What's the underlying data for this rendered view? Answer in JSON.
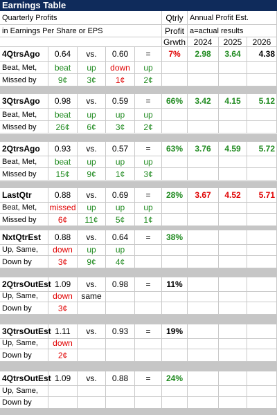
{
  "title": "Earnings Table",
  "header": {
    "line1": "Quarterly Profits",
    "line2": "in Earnings Per Share or EPS",
    "growth": [
      "Qtrly",
      "Profit",
      "Grwth"
    ],
    "annual_label": "Annual Profit Est.",
    "actual_label": "a=actual results",
    "years": [
      "2024",
      "2025",
      "2026"
    ]
  },
  "blocks": [
    {
      "rows": [
        [
          "4QtrsAgo",
          "0.64",
          "vs.",
          "0.60",
          "=",
          "7%",
          "2.98",
          "3.64",
          "4.38"
        ],
        [
          "Beat, Met,",
          "beat",
          "up",
          "down",
          "up",
          "",
          "",
          "",
          ""
        ],
        [
          "Missed by",
          "9¢",
          "3¢",
          "1¢",
          "2¢",
          "",
          "",
          "",
          ""
        ]
      ],
      "colors": [
        [
          "",
          "",
          "",
          "",
          "",
          "red",
          "green",
          "green",
          ""
        ],
        [
          "",
          "green",
          "green",
          "red",
          "green",
          "",
          "",
          "",
          ""
        ],
        [
          "",
          "green",
          "green",
          "red",
          "green",
          "",
          "",
          "",
          ""
        ]
      ]
    },
    {
      "rows": [
        [
          "3QtrsAgo",
          "0.98",
          "vs.",
          "0.59",
          "=",
          "66%",
          "3.42",
          "4.15",
          "5.12"
        ],
        [
          "Beat, Met,",
          "beat",
          "up",
          "up",
          "up",
          "",
          "",
          "",
          ""
        ],
        [
          "Missed by",
          "26¢",
          "6¢",
          "3¢",
          "2¢",
          "",
          "",
          "",
          ""
        ]
      ],
      "colors": [
        [
          "",
          "",
          "",
          "",
          "",
          "green",
          "green",
          "green",
          "green"
        ],
        [
          "",
          "green",
          "green",
          "green",
          "green",
          "",
          "",
          "",
          ""
        ],
        [
          "",
          "green",
          "green",
          "green",
          "green",
          "",
          "",
          "",
          ""
        ]
      ]
    },
    {
      "rows": [
        [
          "2QtrsAgo",
          "0.93",
          "vs.",
          "0.57",
          "=",
          "63%",
          "3.76",
          "4.59",
          "5.72"
        ],
        [
          "Beat, Met,",
          "beat",
          "up",
          "up",
          "up",
          "",
          "",
          "",
          ""
        ],
        [
          "Missed by",
          "15¢",
          "9¢",
          "1¢",
          "3¢",
          "",
          "",
          "",
          ""
        ]
      ],
      "colors": [
        [
          "",
          "",
          "",
          "",
          "",
          "green",
          "green",
          "green",
          "green"
        ],
        [
          "",
          "green",
          "green",
          "green",
          "green",
          "",
          "",
          "",
          ""
        ],
        [
          "",
          "green",
          "green",
          "green",
          "green",
          "",
          "",
          "",
          ""
        ]
      ]
    },
    {
      "rows": [
        [
          "LastQtr",
          "0.88",
          "vs.",
          "0.69",
          "=",
          "28%",
          "3.67",
          "4.52",
          "5.71"
        ],
        [
          "Beat, Met,",
          "missed",
          "up",
          "up",
          "up",
          "",
          "",
          "",
          ""
        ],
        [
          "Missed by",
          "6¢",
          "11¢",
          "5¢",
          "1¢",
          "",
          "",
          "",
          ""
        ]
      ],
      "colors": [
        [
          "",
          "",
          "",
          "",
          "",
          "green",
          "red",
          "red",
          "red"
        ],
        [
          "",
          "red",
          "green",
          "green",
          "green",
          "",
          "",
          "",
          ""
        ],
        [
          "",
          "red",
          "green",
          "green",
          "green",
          "",
          "",
          "",
          ""
        ]
      ]
    },
    {
      "rows": [
        [
          "NxtQtrEst",
          "0.88",
          "vs.",
          "0.64",
          "=",
          "38%",
          "",
          "",
          ""
        ],
        [
          "Up, Same,",
          "down",
          "up",
          "up",
          "",
          "",
          "",
          "",
          ""
        ],
        [
          "Down by",
          "3¢",
          "9¢",
          "4¢",
          "",
          "",
          "",
          "",
          ""
        ]
      ],
      "colors": [
        [
          "",
          "",
          "",
          "",
          "",
          "green",
          "",
          "",
          ""
        ],
        [
          "",
          "red",
          "green",
          "green",
          "",
          "",
          "",
          "",
          ""
        ],
        [
          "",
          "red",
          "green",
          "green",
          "",
          "",
          "",
          "",
          ""
        ]
      ]
    },
    {
      "rows": [
        [
          "2QtrsOutEst",
          "1.09",
          "vs.",
          "0.98",
          "=",
          "11%",
          "",
          "",
          ""
        ],
        [
          "Up, Same,",
          "down",
          "same",
          "",
          "",
          "",
          "",
          "",
          ""
        ],
        [
          "Down by",
          "3¢",
          "",
          "",
          "",
          "",
          "",
          "",
          ""
        ]
      ],
      "colors": [
        [
          "",
          "",
          "",
          "",
          "",
          "",
          "",
          "",
          ""
        ],
        [
          "",
          "red",
          "",
          "",
          "",
          "",
          "",
          "",
          ""
        ],
        [
          "",
          "red",
          "",
          "",
          "",
          "",
          "",
          "",
          ""
        ]
      ]
    },
    {
      "rows": [
        [
          "3QtrsOutEst",
          "1.11",
          "vs.",
          "0.93",
          "=",
          "19%",
          "",
          "",
          ""
        ],
        [
          "Up, Same,",
          "down",
          "",
          "",
          "",
          "",
          "",
          "",
          ""
        ],
        [
          "Down by",
          "2¢",
          "",
          "",
          "",
          "",
          "",
          "",
          ""
        ]
      ],
      "colors": [
        [
          "",
          "",
          "",
          "",
          "",
          "",
          "",
          "",
          ""
        ],
        [
          "",
          "red",
          "",
          "",
          "",
          "",
          "",
          "",
          ""
        ],
        [
          "",
          "red",
          "",
          "",
          "",
          "",
          "",
          "",
          ""
        ]
      ]
    },
    {
      "rows": [
        [
          "4QtrsOutEst",
          "1.09",
          "vs.",
          "0.88",
          "=",
          "24%",
          "",
          "",
          ""
        ],
        [
          "Up, Same,",
          "",
          "",
          "",
          "",
          "",
          "",
          "",
          ""
        ],
        [
          "Down by",
          "",
          "",
          "",
          "",
          "",
          "",
          "",
          ""
        ]
      ],
      "colors": [
        [
          "",
          "",
          "",
          "",
          "",
          "green",
          "",
          "",
          ""
        ],
        [
          "",
          "",
          "",
          "",
          "",
          "",
          "",
          "",
          ""
        ],
        [
          "",
          "",
          "",
          "",
          "",
          "",
          "",
          "",
          ""
        ]
      ]
    }
  ],
  "theme": {
    "title_bg": "#0f2b5b",
    "green": "#1f8a1f",
    "red": "#e00000",
    "separator": "#c6c6c6"
  }
}
